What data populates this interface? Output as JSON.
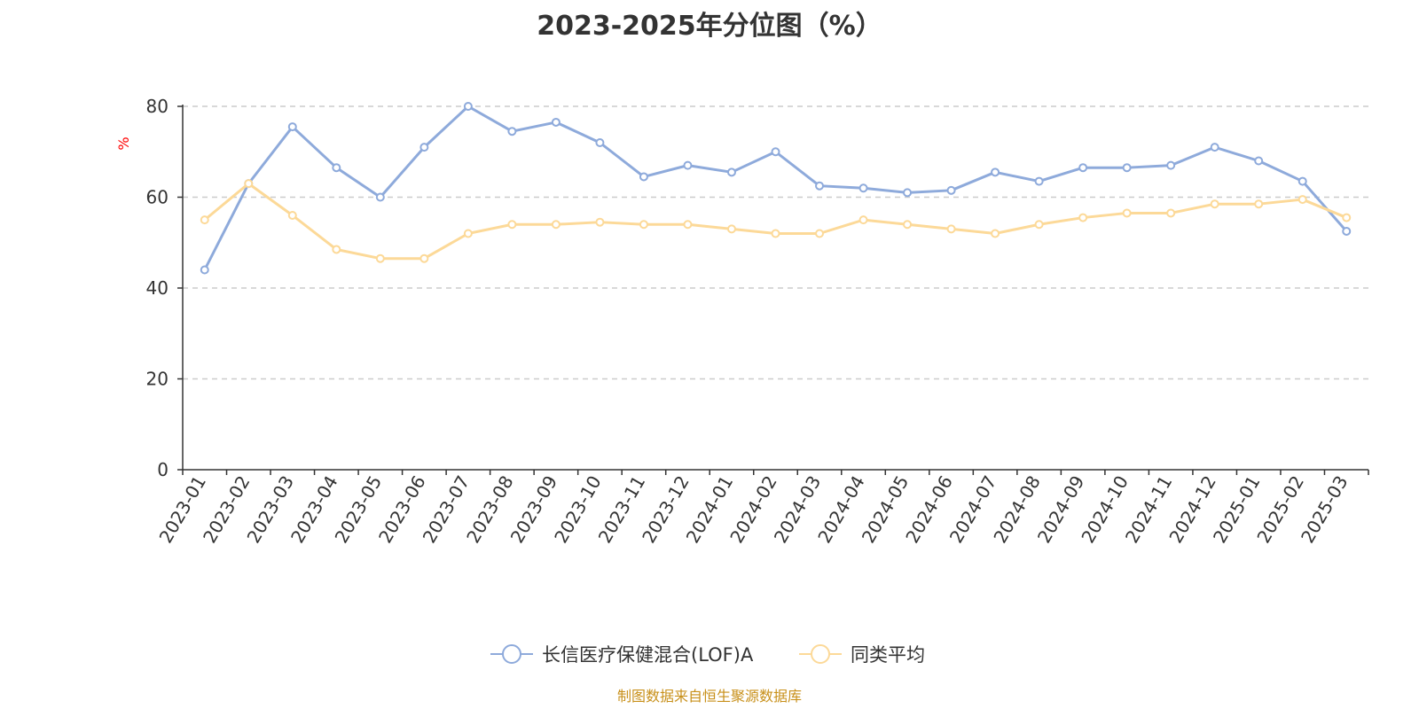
{
  "chart_data": {
    "type": "line",
    "title": "2023-2025年分位图（%）",
    "ylabel": "%",
    "xlabel": "",
    "ylim": [
      0,
      80
    ],
    "yticks": [
      0,
      20,
      40,
      60,
      80
    ],
    "grid": true,
    "legend_position": "bottom",
    "categories": [
      "2023-01",
      "2023-02",
      "2023-03",
      "2023-04",
      "2023-05",
      "2023-06",
      "2023-07",
      "2023-08",
      "2023-09",
      "2023-10",
      "2023-11",
      "2023-12",
      "2024-01",
      "2024-02",
      "2024-03",
      "2024-04",
      "2024-05",
      "2024-06",
      "2024-07",
      "2024-08",
      "2024-09",
      "2024-10",
      "2024-11",
      "2024-12",
      "2025-01",
      "2025-02",
      "2025-03"
    ],
    "series": [
      {
        "name": "长信医疗保健混合(LOF)A",
        "color": "#8eaadb",
        "values": [
          44,
          63,
          75.5,
          66.5,
          60,
          71,
          80,
          74.5,
          76.5,
          72,
          64.5,
          67,
          65.5,
          70,
          62.5,
          62,
          61,
          61.5,
          65.5,
          63.5,
          66.5,
          66.5,
          67,
          71,
          68,
          63.5,
          52.5
        ]
      },
      {
        "name": "同类平均",
        "color": "#fcd998",
        "values": [
          55,
          63,
          56,
          48.5,
          46.5,
          46.5,
          52,
          54,
          54,
          54.5,
          54,
          54,
          53,
          52,
          52,
          55,
          54,
          53,
          52,
          54,
          55.5,
          56.5,
          56.5,
          58.5,
          58.5,
          59.5,
          55.5
        ]
      }
    ]
  },
  "footer": {
    "source": "制图数据来自恒生聚源数据库"
  }
}
